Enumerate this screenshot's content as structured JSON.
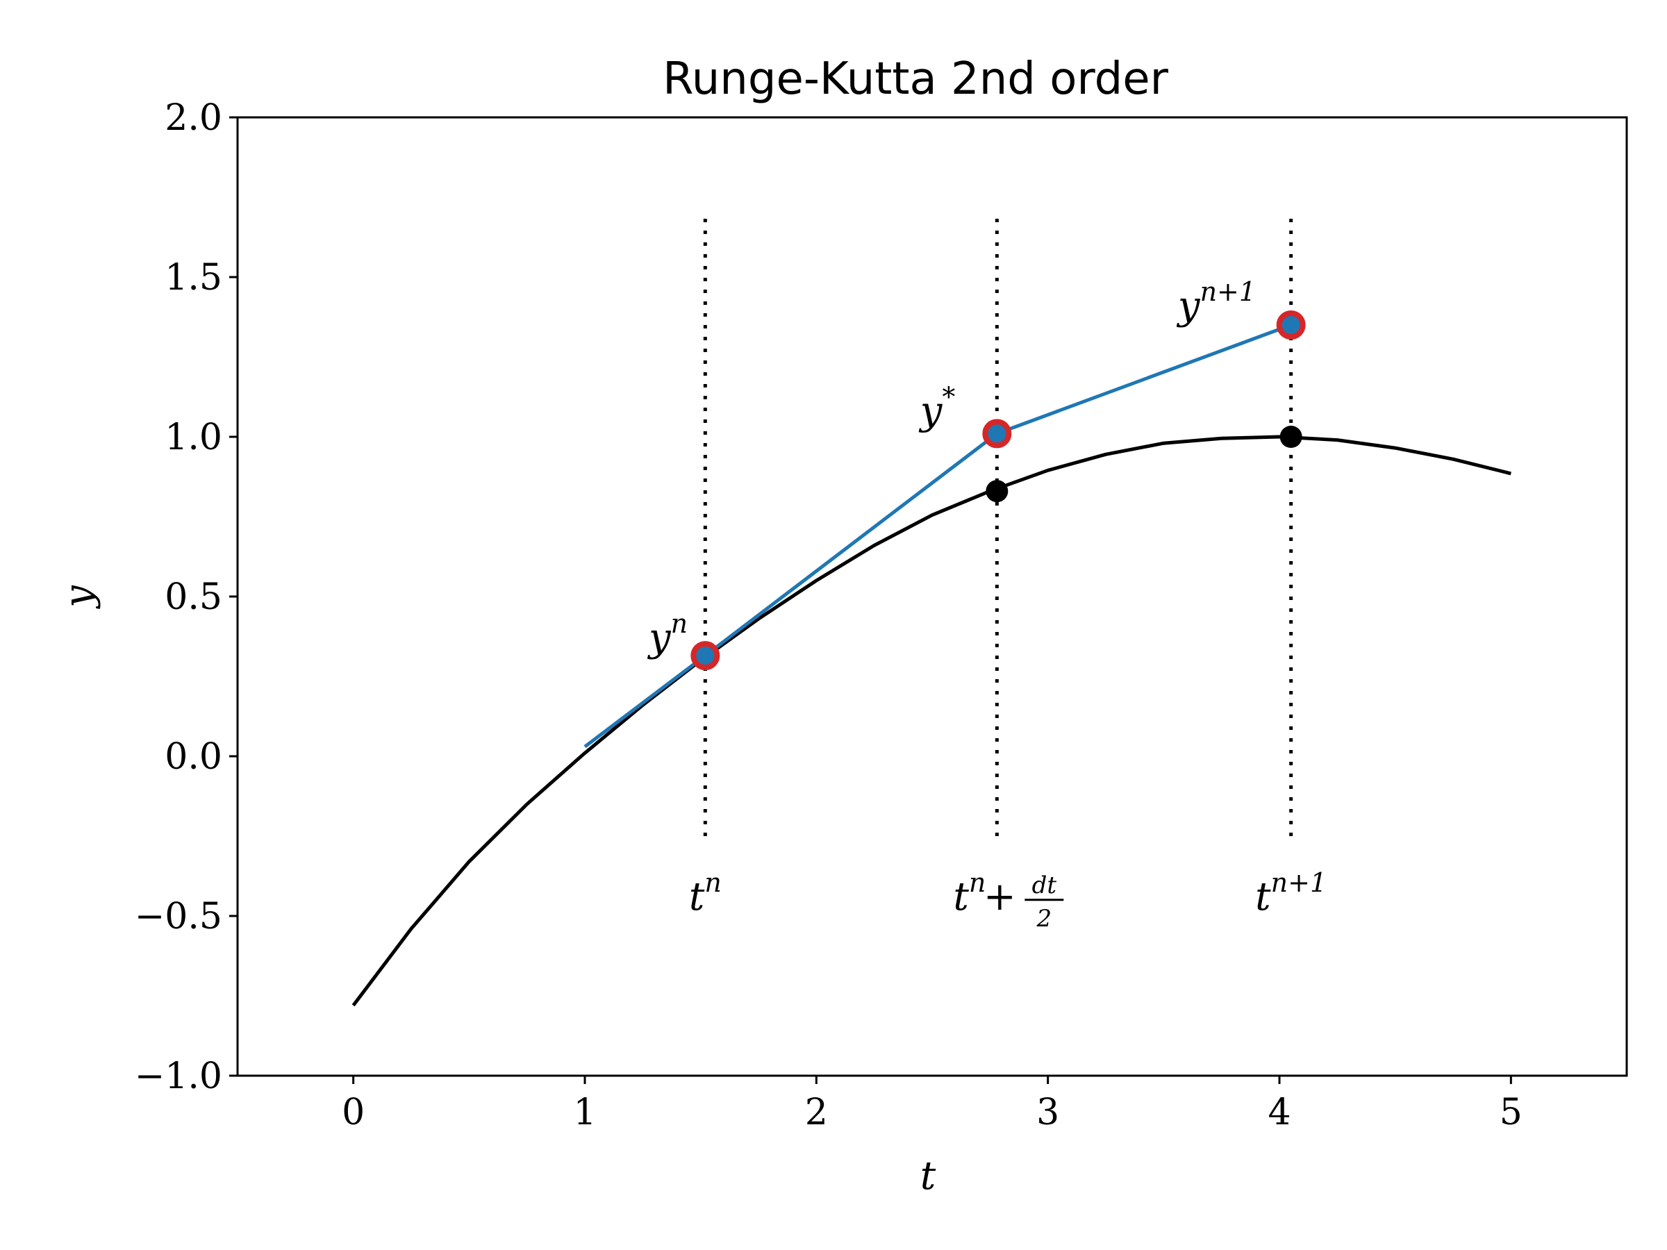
{
  "chart_data": {
    "type": "line",
    "title": "Runge-Kutta 2nd order",
    "xlabel": "t",
    "ylabel": "y",
    "xlim": [
      -0.5,
      5.5
    ],
    "ylim": [
      -1.0,
      2.0
    ],
    "xticks": [
      0,
      1,
      2,
      3,
      4,
      5
    ],
    "xtick_labels": [
      "0",
      "1",
      "2",
      "3",
      "4",
      "5"
    ],
    "yticks": [
      -1.0,
      -0.5,
      0.0,
      0.5,
      1.0,
      1.5,
      2.0
    ],
    "ytick_labels": [
      "−1.0",
      "−0.5",
      "0.0",
      "0.5",
      "1.0",
      "1.5",
      "2.0"
    ],
    "grid": false,
    "series": [
      {
        "role": "exact-solution-curve",
        "color": "#000000",
        "x": [
          0.0,
          0.25,
          0.5,
          0.75,
          1.0,
          1.25,
          1.5,
          1.75,
          2.0,
          2.25,
          2.5,
          2.75,
          3.0,
          3.25,
          3.5,
          3.75,
          4.0,
          4.25,
          4.5,
          4.75,
          5.0
        ],
        "y": [
          -0.78,
          -0.54,
          -0.33,
          -0.15,
          0.01,
          0.16,
          0.3,
          0.43,
          0.55,
          0.66,
          0.755,
          0.83,
          0.895,
          0.945,
          0.98,
          0.995,
          1.0,
          0.99,
          0.965,
          0.93,
          0.885
        ]
      },
      {
        "role": "rk2-steps",
        "color": "#1f77b4",
        "x": [
          1.0,
          1.52,
          2.78,
          4.05
        ],
        "y": [
          0.03,
          0.315,
          1.01,
          1.35
        ]
      }
    ],
    "red_markers": [
      {
        "x": 1.52,
        "y": 0.315
      },
      {
        "x": 2.78,
        "y": 1.01
      },
      {
        "x": 4.05,
        "y": 1.35
      }
    ],
    "black_markers": [
      {
        "x": 2.78,
        "y": 0.83
      },
      {
        "x": 4.05,
        "y": 1.0
      }
    ],
    "vlines": [
      {
        "x": 1.52,
        "y0": -0.25,
        "y1": 1.7
      },
      {
        "x": 2.78,
        "y0": -0.25,
        "y1": 1.7
      },
      {
        "x": 4.05,
        "y0": -0.25,
        "y1": 1.7
      }
    ],
    "annotations": {
      "yn": {
        "base": "y",
        "sup": "n",
        "x": 1.36,
        "y": 0.33
      },
      "ystar": {
        "base": "y",
        "sup": "*",
        "x": 2.6,
        "y": 1.04
      },
      "ynp1": {
        "base": "y",
        "sup": "n+1",
        "x": 3.73,
        "y": 1.37
      },
      "tn": {
        "base": "t",
        "sup": "n",
        "x": 1.52,
        "y": -0.48
      },
      "tmid": {
        "base": "t",
        "sup": "n",
        "op": "+",
        "num": "dt",
        "den": "2",
        "x": 2.78,
        "y": -0.48
      },
      "tnp1": {
        "base": "t",
        "sup": "n+1",
        "x": 4.05,
        "y": -0.48
      }
    },
    "colors": {
      "curve": "#000000",
      "steps": "#1f77b4",
      "marker_edge": "#d62728",
      "marker_face": "#1f77b4"
    }
  }
}
